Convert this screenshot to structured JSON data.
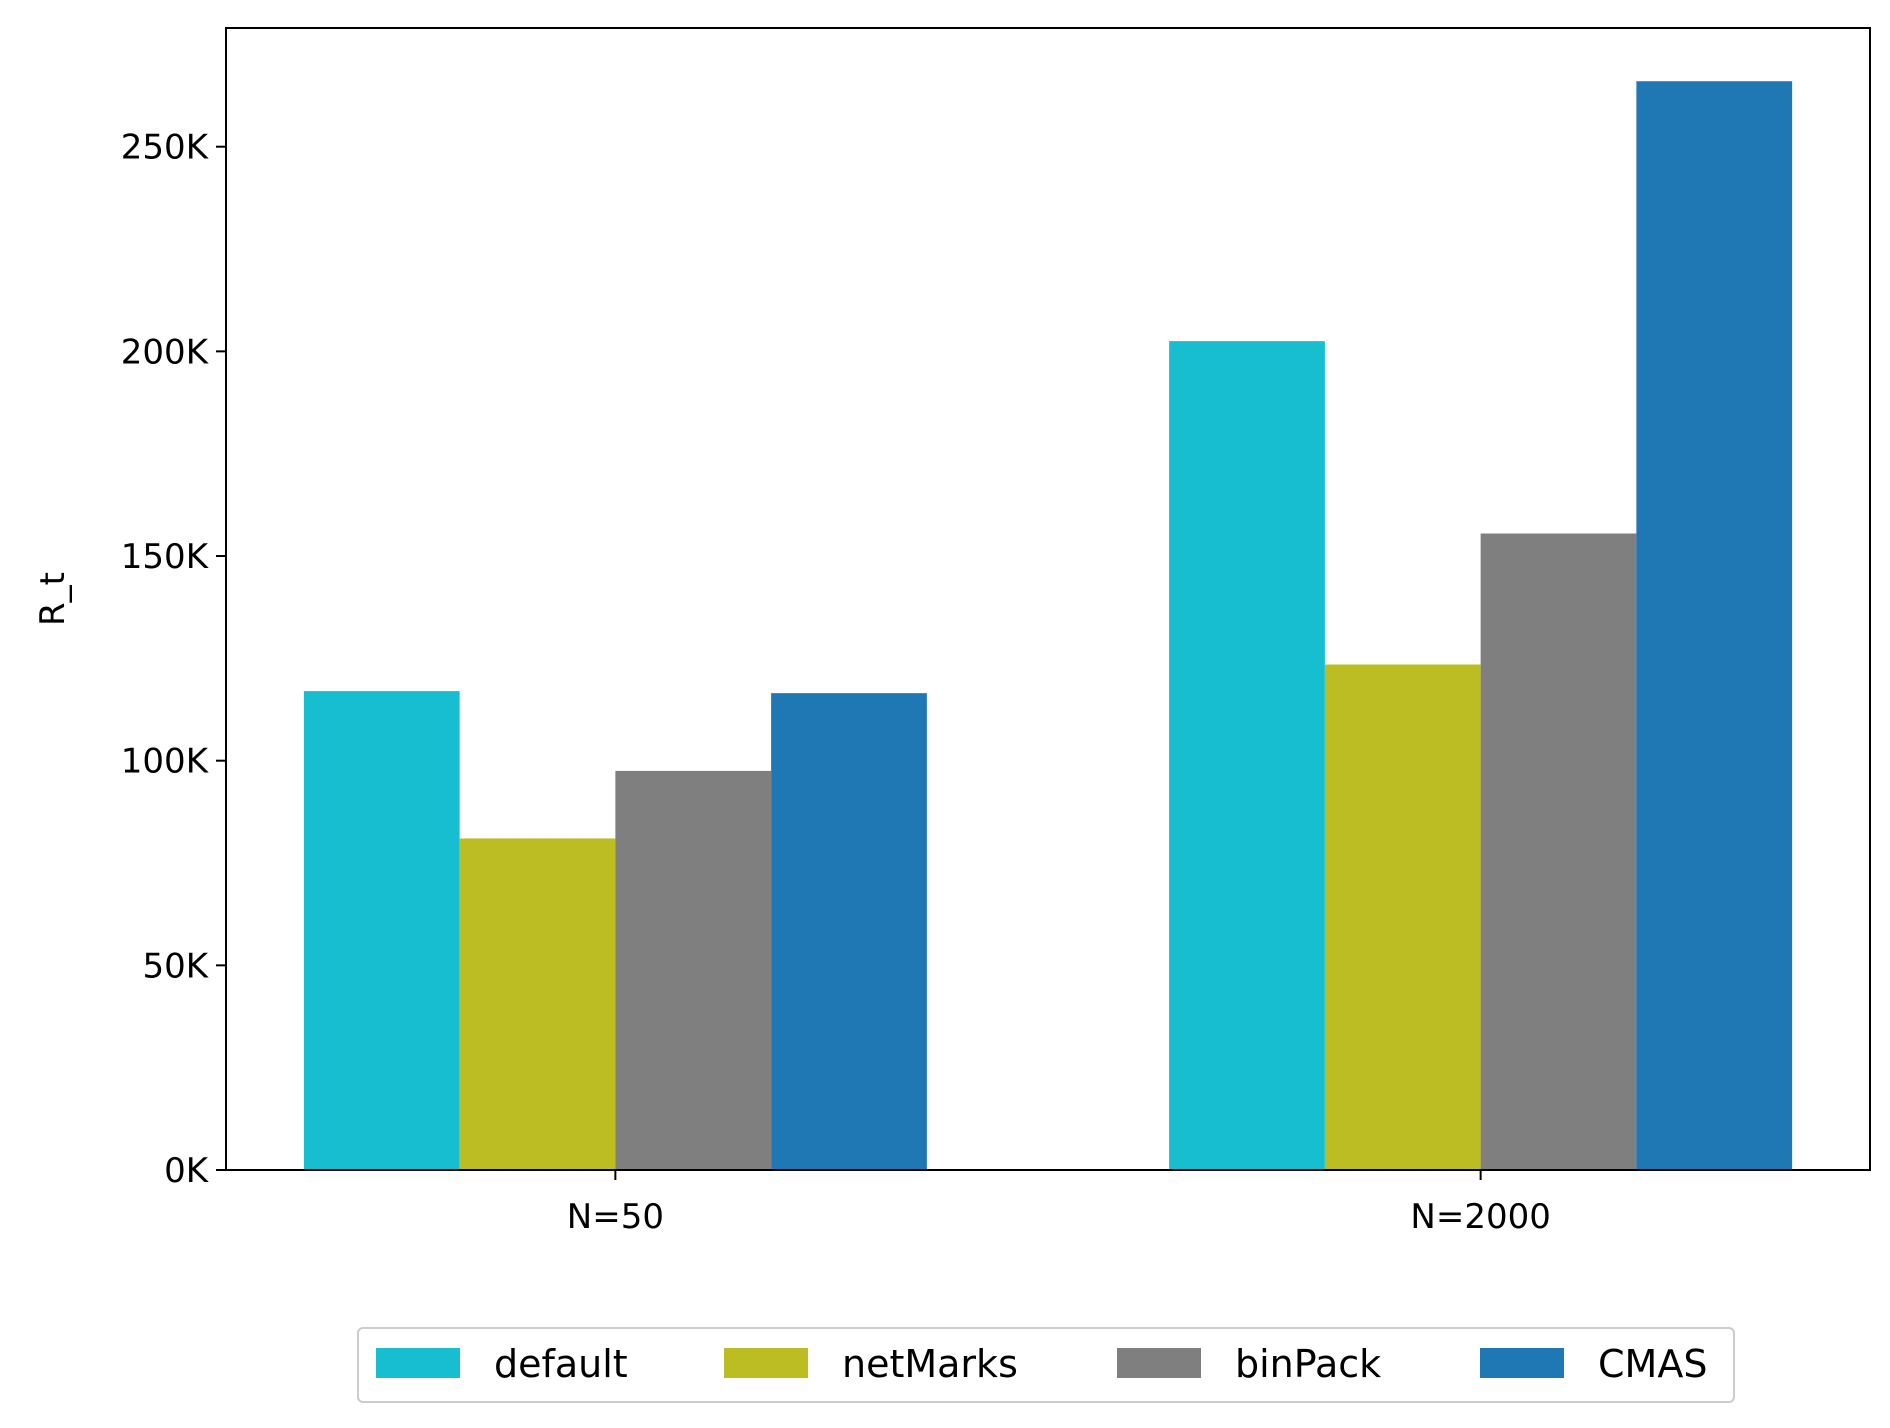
{
  "chart_data": {
    "type": "bar",
    "title": "",
    "xlabel": "",
    "ylabel": "R_t",
    "categories": [
      "N=50",
      "N=2000"
    ],
    "series": [
      {
        "name": "default",
        "color": "#17becf",
        "values": [
          117000,
          202500
        ]
      },
      {
        "name": "netMarks",
        "color": "#bcbd22",
        "values": [
          81000,
          123500
        ]
      },
      {
        "name": "binPack",
        "color": "#7f7f7f",
        "values": [
          97500,
          155500
        ]
      },
      {
        "name": "CMAS",
        "color": "#1f77b4",
        "values": [
          116500,
          266000
        ]
      }
    ],
    "ylim": [
      0,
      279000
    ],
    "yticks": [
      0,
      50000,
      100000,
      150000,
      200000,
      250000
    ],
    "ytick_labels": [
      "0K",
      "50K",
      "100K",
      "150K",
      "200K",
      "250K"
    ],
    "grid": false,
    "legend": {
      "placement": "bottom-center",
      "columns": 4
    }
  }
}
